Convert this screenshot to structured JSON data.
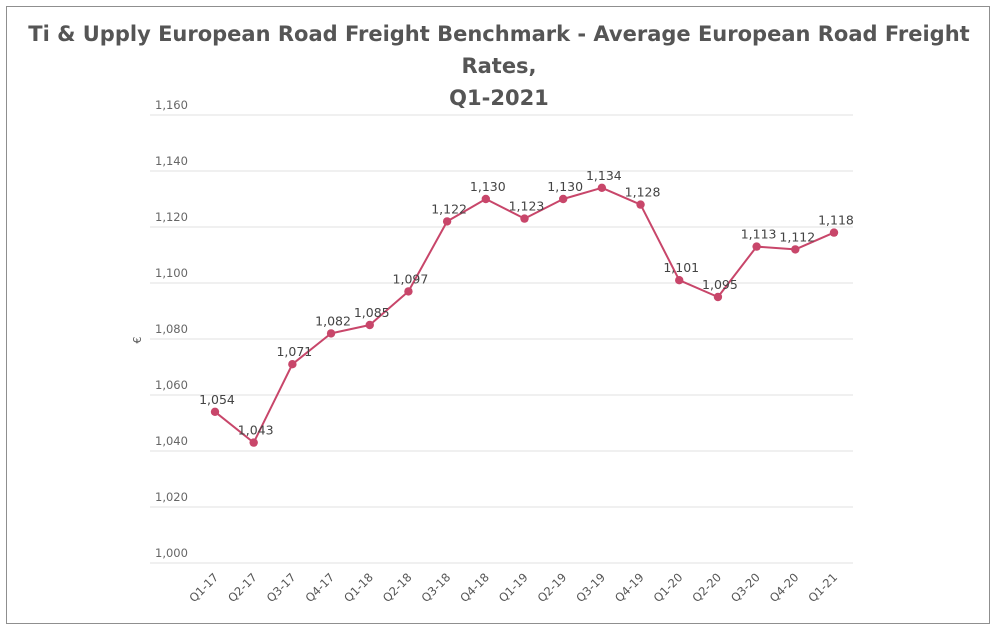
{
  "chart_data": {
    "type": "line",
    "title_line1": "Ti & Upply European Road Freight Benchmark - Average European Road Freight Rates,",
    "title_line2": "Q1-2021",
    "ylabel": "€",
    "xlabel": "",
    "ylim": [
      1000,
      1160
    ],
    "yticks": [
      1000,
      1020,
      1040,
      1060,
      1080,
      1100,
      1120,
      1140,
      1160
    ],
    "ytick_labels": [
      "1,000",
      "1,020",
      "1,040",
      "1,060",
      "1,080",
      "1,100",
      "1,120",
      "1,140",
      "1,160"
    ],
    "categories": [
      "Q1-17",
      "Q2-17",
      "Q3-17",
      "Q4-17",
      "Q1-18",
      "Q2-18",
      "Q3-18",
      "Q4-18",
      "Q1-19",
      "Q2-19",
      "Q3-19",
      "Q4-19",
      "Q1-20",
      "Q2-20",
      "Q3-20",
      "Q4-20",
      "Q1-21"
    ],
    "series": [
      {
        "values": [
          1054,
          1043,
          1071,
          1082,
          1085,
          1097,
          1122,
          1130,
          1123,
          1130,
          1134,
          1128,
          1101,
          1095,
          1113,
          1112,
          1118
        ],
        "value_labels": [
          "1,054",
          "1,043",
          "1,071",
          "1,082",
          "1,085",
          "1,097",
          "1,122",
          "1,130",
          "1,123",
          "1,130",
          "1,134",
          "1,128",
          "1,101",
          "1,095",
          "1,113",
          "1,112",
          "1,118"
        ],
        "color": "#c8466a"
      }
    ],
    "grid": true,
    "legend": "none"
  }
}
